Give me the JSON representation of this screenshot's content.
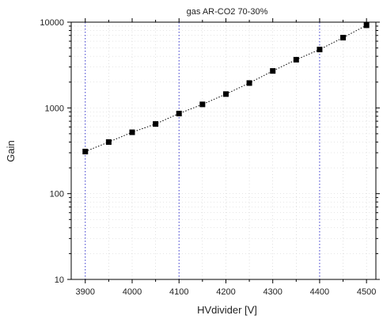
{
  "chart_data": {
    "type": "scatter",
    "title": "gas AR-CO2 70-30%",
    "xlabel": "HVdivider [V]",
    "ylabel": "Gain",
    "xlim": [
      3870,
      4520
    ],
    "ylim": [
      10,
      10000
    ],
    "yscale": "log",
    "x_ticks": [
      3900,
      4000,
      4100,
      4200,
      4300,
      4400,
      4500
    ],
    "y_ticks": [
      10,
      100,
      1000,
      10000
    ],
    "grid": "light dotted grid with blue dotted verticals at 3900, 4100, 4400",
    "grid_vertical_highlight": [
      3900,
      4100,
      4400
    ],
    "series": [
      {
        "marker": "square",
        "line": "dotted",
        "color": "#000000",
        "x": [
          3900,
          3950,
          4000,
          4050,
          4100,
          4150,
          4200,
          4250,
          4300,
          4350,
          4400,
          4450,
          4500
        ],
        "y": [
          310,
          400,
          520,
          650,
          860,
          1100,
          1450,
          1950,
          2700,
          3650,
          4800,
          6600,
          9200
        ]
      }
    ]
  },
  "colors": {
    "axis": "#000000",
    "highlight_grid": "#3333cc",
    "minor_grid": "#cccccc",
    "marker": "#000000"
  }
}
